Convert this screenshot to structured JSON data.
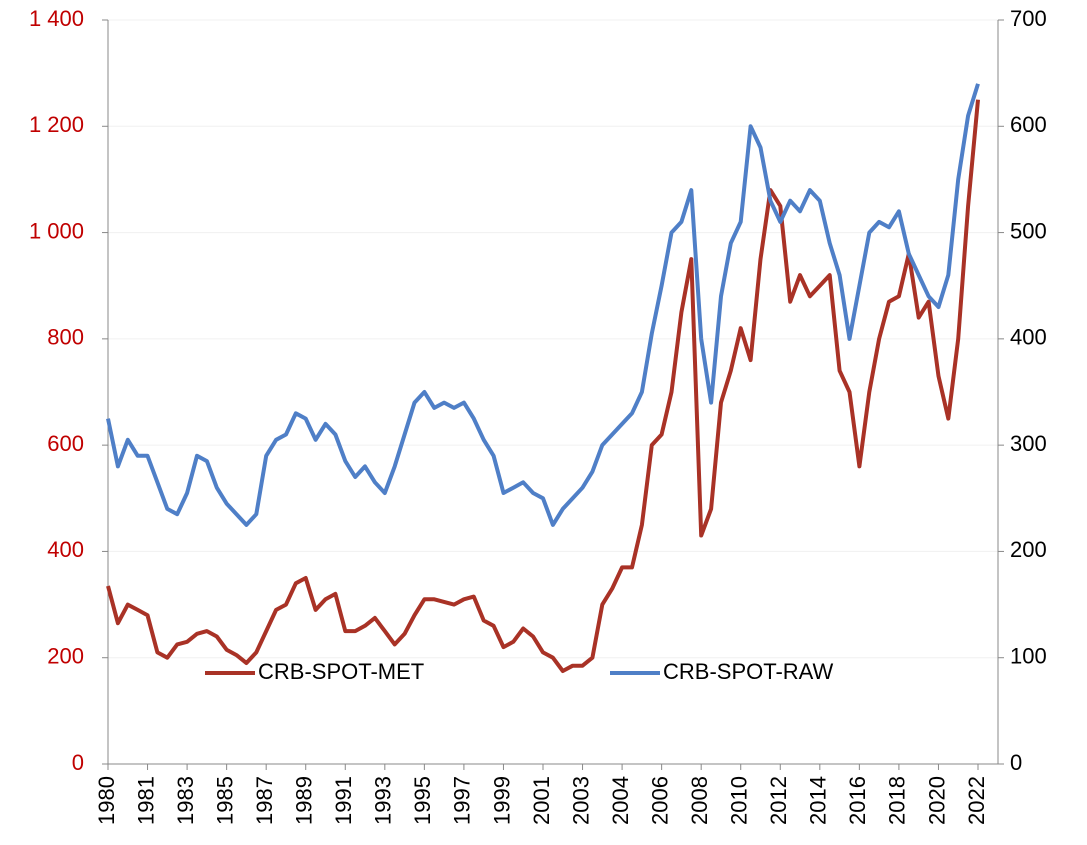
{
  "chart_data": {
    "type": "line",
    "categories": [
      "1980",
      null,
      null,
      null,
      "1981",
      null,
      null,
      null,
      "1983",
      null,
      null,
      null,
      "1985",
      null,
      null,
      null,
      "1987",
      null,
      null,
      null,
      "1989",
      null,
      null,
      null,
      "1991",
      null,
      null,
      null,
      "1993",
      null,
      null,
      null,
      "1995",
      null,
      null,
      null,
      "1997",
      null,
      null,
      null,
      "1999",
      null,
      null,
      null,
      "2001",
      null,
      null,
      null,
      "2003",
      null,
      null,
      null,
      "2004",
      null,
      null,
      null,
      "2006",
      null,
      null,
      null,
      "2008",
      null,
      null,
      null,
      "2010",
      null,
      null,
      null,
      "2012",
      null,
      null,
      null,
      "2014",
      null,
      null,
      null,
      "2016",
      null,
      null,
      null,
      "2018",
      null,
      null,
      null,
      "2020",
      null,
      null,
      null,
      "2022"
    ],
    "series": [
      {
        "name": "CRB-SPOT-MET",
        "color": "#a93226",
        "axis": "y",
        "values": [
          335,
          265,
          300,
          290,
          280,
          210,
          200,
          225,
          230,
          245,
          250,
          240,
          215,
          205,
          190,
          210,
          250,
          290,
          300,
          340,
          350,
          290,
          310,
          320,
          250,
          250,
          260,
          275,
          250,
          225,
          245,
          280,
          310,
          310,
          305,
          300,
          310,
          315,
          270,
          260,
          220,
          230,
          255,
          240,
          210,
          200,
          175,
          185,
          185,
          200,
          300,
          330,
          370,
          370,
          450,
          600,
          620,
          700,
          850,
          950,
          430,
          480,
          680,
          740,
          820,
          760,
          950,
          1080,
          1050,
          870,
          920,
          880,
          900,
          920,
          740,
          700,
          560,
          700,
          800,
          870,
          880,
          960,
          840,
          870,
          730,
          650,
          800,
          1050,
          1250
        ]
      },
      {
        "name": "CRB-SPOT-RAW",
        "color": "#4f7fc7",
        "axis": "y2",
        "values": [
          325,
          280,
          305,
          290,
          290,
          265,
          240,
          235,
          255,
          290,
          285,
          260,
          245,
          235,
          225,
          235,
          290,
          305,
          310,
          330,
          325,
          305,
          320,
          310,
          285,
          270,
          280,
          265,
          255,
          280,
          310,
          340,
          350,
          335,
          340,
          335,
          340,
          325,
          305,
          290,
          255,
          260,
          265,
          255,
          250,
          225,
          240,
          250,
          260,
          275,
          300,
          310,
          320,
          330,
          350,
          405,
          450,
          500,
          510,
          540,
          400,
          340,
          440,
          490,
          510,
          600,
          580,
          530,
          510,
          530,
          520,
          540,
          530,
          490,
          460,
          400,
          450,
          500,
          510,
          505,
          520,
          480,
          460,
          440,
          430,
          460,
          550,
          610,
          640
        ]
      }
    ],
    "ylim": [
      0,
      1400
    ],
    "yticks": [
      0,
      200,
      400,
      600,
      800,
      {
        "value": 1000,
        "label": "1 000"
      },
      {
        "value": 1200,
        "label": "1 200"
      },
      {
        "value": 1400,
        "label": "1 400"
      }
    ],
    "ytick_color": "#c00000",
    "y2lim": [
      0,
      700
    ],
    "y2ticks": [
      0,
      100,
      200,
      300,
      400,
      500,
      600,
      700
    ],
    "grid": true,
    "legend": "lower center"
  }
}
